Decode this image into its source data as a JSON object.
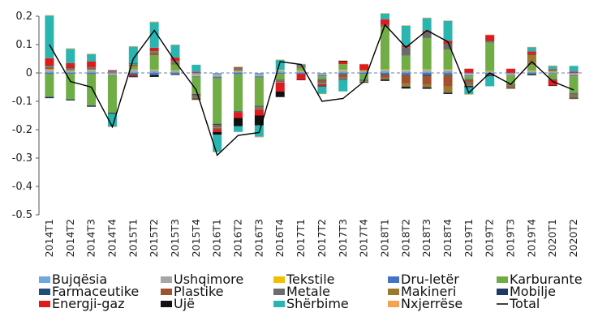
{
  "chart_data": {
    "type": "bar",
    "stacked": true,
    "title": "",
    "xlabel": "",
    "ylabel": "",
    "ylim": [
      -0.5,
      0.2
    ],
    "yticks": [
      0.2,
      0.1,
      0,
      -0.1,
      -0.2,
      -0.3,
      -0.4,
      -0.5
    ],
    "ytick_labels": [
      "0.2",
      "0.1",
      "0",
      "-0.1",
      "-0.2",
      "-0.3",
      "-0.4",
      "-0.5"
    ],
    "grid": false,
    "zero_line": "dashed",
    "legend_position": "bottom",
    "categories": [
      "2014T1",
      "2014T2",
      "2014T3",
      "2014T4",
      "2015T1",
      "2015T2",
      "2015T3",
      "2015T4",
      "2016T1",
      "2016T2",
      "2016T3",
      "2016T4",
      "2017T1",
      "2017T2",
      "2017T3",
      "2017T4",
      "2018T1",
      "2018T2",
      "2018T3",
      "2018T4",
      "2019T1",
      "2019T2",
      "2019T3",
      "2019T4",
      "2020T1",
      "2020T2"
    ],
    "series": [
      {
        "name": "Bujqësia",
        "color": "#6fa8dc",
        "values": [
          0.005,
          0.005,
          0.005,
          -0.003,
          0.004,
          0.006,
          0.004,
          -0.004,
          -0.006,
          0.003,
          -0.006,
          0.005,
          0.003,
          -0.003,
          0.004,
          0.003,
          0.006,
          0.004,
          0.005,
          0.006,
          -0.004,
          0.002,
          -0.003,
          0.003,
          0.002,
          -0.003
        ]
      },
      {
        "name": "Ushqimore",
        "color": "#a6a6a6",
        "values": [
          0.006,
          0.004,
          0.004,
          -0.004,
          0.006,
          0.004,
          0.005,
          -0.005,
          -0.005,
          0.004,
          -0.005,
          0.004,
          0.004,
          -0.004,
          0.005,
          0.004,
          0.005,
          0.005,
          0.006,
          0.005,
          -0.004,
          0.004,
          -0.003,
          0.004,
          0.003,
          -0.004
        ]
      },
      {
        "name": "Tekstile",
        "color": "#f2c000",
        "values": [
          0.002,
          0.001,
          0.002,
          -0.001,
          0.002,
          0.002,
          0.001,
          -0.002,
          -0.002,
          0.001,
          -0.001,
          0.002,
          0.001,
          -0.001,
          0.002,
          0.001,
          0.002,
          0.002,
          0.002,
          0.002,
          -0.001,
          0.001,
          -0.001,
          0.001,
          0.001,
          -0.001
        ]
      },
      {
        "name": "Dru-letër",
        "color": "#4472c4",
        "values": [
          -0.004,
          -0.003,
          -0.004,
          -0.002,
          -0.004,
          -0.005,
          -0.003,
          -0.003,
          -0.006,
          -0.005,
          -0.004,
          -0.003,
          -0.002,
          -0.004,
          -0.003,
          -0.003,
          -0.004,
          -0.005,
          -0.006,
          -0.005,
          -0.003,
          -0.004,
          -0.002,
          -0.003,
          -0.002,
          -0.004
        ]
      },
      {
        "name": "Karburante",
        "color": "#70ad47",
        "values": [
          -0.08,
          -0.09,
          -0.11,
          -0.13,
          0.01,
          0.05,
          0.02,
          -0.06,
          -0.16,
          -0.13,
          -0.1,
          -0.02,
          0.01,
          -0.01,
          0.02,
          -0.02,
          0.15,
          0.05,
          0.11,
          0.07,
          -0.01,
          0.1,
          -0.03,
          0.02,
          -0.02,
          -0.06
        ]
      },
      {
        "name": "Farmaceutike",
        "color": "#1f4e79",
        "values": [
          -0.003,
          -0.002,
          -0.003,
          -0.002,
          -0.003,
          -0.003,
          -0.002,
          -0.003,
          -0.004,
          -0.003,
          -0.003,
          -0.002,
          -0.002,
          -0.003,
          -0.002,
          -0.002,
          -0.003,
          -0.003,
          -0.004,
          -0.003,
          -0.002,
          -0.003,
          -0.002,
          -0.002,
          -0.002,
          -0.003
        ]
      },
      {
        "name": "Plastike",
        "color": "#a0522d",
        "values": [
          0.004,
          0.003,
          0.003,
          0.002,
          0.003,
          0.005,
          0.004,
          -0.004,
          -0.004,
          0.004,
          -0.003,
          -0.003,
          0.003,
          -0.005,
          -0.01,
          0.003,
          -0.01,
          -0.03,
          -0.03,
          -0.04,
          -0.01,
          -0.003,
          -0.004,
          0.003,
          0.003,
          -0.004
        ]
      },
      {
        "name": "Metale",
        "color": "#6b6b6b",
        "values": [
          0.005,
          0.004,
          0.004,
          0.003,
          0.004,
          0.006,
          0.005,
          -0.006,
          -0.005,
          0.005,
          -0.004,
          -0.004,
          0.004,
          -0.006,
          -0.005,
          -0.004,
          0.006,
          0.03,
          0.02,
          0.02,
          -0.006,
          0.004,
          -0.004,
          0.004,
          0.003,
          -0.005
        ]
      },
      {
        "name": "Makineri",
        "color": "#9c7a2b",
        "values": [
          0.003,
          0.002,
          0.002,
          0.002,
          0.003,
          0.004,
          0.003,
          -0.003,
          -0.004,
          0.003,
          -0.003,
          -0.002,
          0.002,
          -0.004,
          -0.003,
          -0.003,
          -0.005,
          -0.01,
          -0.01,
          -0.02,
          -0.005,
          0.002,
          -0.003,
          0.03,
          0.002,
          -0.003
        ]
      },
      {
        "name": "Mobilje",
        "color": "#1f3864",
        "values": [
          0.002,
          0.001,
          0.001,
          0.001,
          0.001,
          0.002,
          0.002,
          -0.002,
          -0.002,
          0.001,
          -0.001,
          -0.001,
          0.001,
          -0.002,
          -0.002,
          -0.001,
          -0.002,
          -0.002,
          -0.003,
          -0.003,
          -0.002,
          0.001,
          -0.001,
          0.001,
          0.001,
          -0.002
        ]
      },
      {
        "name": "Energji-gaz",
        "color": "#e31a1c",
        "values": [
          0.025,
          0.015,
          0.02,
          0.002,
          -0.005,
          0.01,
          0.01,
          0.004,
          -0.01,
          -0.02,
          -0.02,
          -0.03,
          -0.02,
          -0.005,
          0.008,
          0.02,
          0.02,
          0.005,
          0.005,
          0.01,
          0.015,
          0.02,
          0.015,
          0.01,
          -0.02,
          0.005
        ]
      },
      {
        "name": "Ujë",
        "color": "#111111",
        "values": [
          -0.002,
          -0.002,
          -0.002,
          -0.002,
          -0.003,
          -0.006,
          -0.002,
          -0.002,
          -0.01,
          -0.03,
          -0.035,
          -0.02,
          -0.001,
          -0.001,
          0.004,
          -0.001,
          -0.004,
          -0.005,
          -0.003,
          -0.003,
          -0.003,
          -0.002,
          -0.002,
          -0.003,
          -0.002,
          -0.002
        ]
      },
      {
        "name": "Shërbime",
        "color": "#2bb5b0",
        "values": [
          0.15,
          0.05,
          0.025,
          -0.045,
          0.06,
          0.09,
          0.045,
          0.025,
          -0.06,
          -0.02,
          -0.04,
          0.035,
          0.003,
          -0.025,
          -0.04,
          0.0,
          0.02,
          0.07,
          0.045,
          0.07,
          -0.025,
          -0.035,
          0.0,
          0.015,
          0.01,
          0.02
        ]
      },
      {
        "name": "Nxjerrëse",
        "color": "#f4a34f",
        "values": [
          0.002,
          0.002,
          0.002,
          -0.001,
          0.001,
          0.002,
          0.001,
          -0.002,
          -0.002,
          0.001,
          -0.002,
          0.001,
          0.001,
          -0.001,
          0.001,
          0.001,
          0.002,
          0.002,
          0.002,
          0.002,
          -0.001,
          0.001,
          -0.001,
          0.001,
          0.001,
          -0.001
        ]
      }
    ],
    "total": {
      "name": "Total",
      "color": "#000000",
      "values": [
        0.1,
        -0.03,
        -0.05,
        -0.19,
        0.05,
        0.15,
        0.04,
        -0.06,
        -0.29,
        -0.22,
        -0.21,
        0.04,
        0.03,
        -0.1,
        -0.09,
        -0.03,
        0.17,
        0.09,
        0.15,
        0.11,
        -0.07,
        0.0,
        -0.04,
        0.04,
        -0.03,
        -0.06
      ]
    },
    "legend_rows": [
      [
        "Bujqësia",
        "Ushqimore",
        "Tekstile",
        "Dru-letër",
        "Karburante"
      ],
      [
        "Farmaceutike",
        "Plastike",
        "Metale",
        "Makineri",
        "Mobilje"
      ],
      [
        "Energji-gaz",
        "Ujë",
        "Shërbime",
        "Nxjerrëse",
        "Total"
      ]
    ]
  }
}
